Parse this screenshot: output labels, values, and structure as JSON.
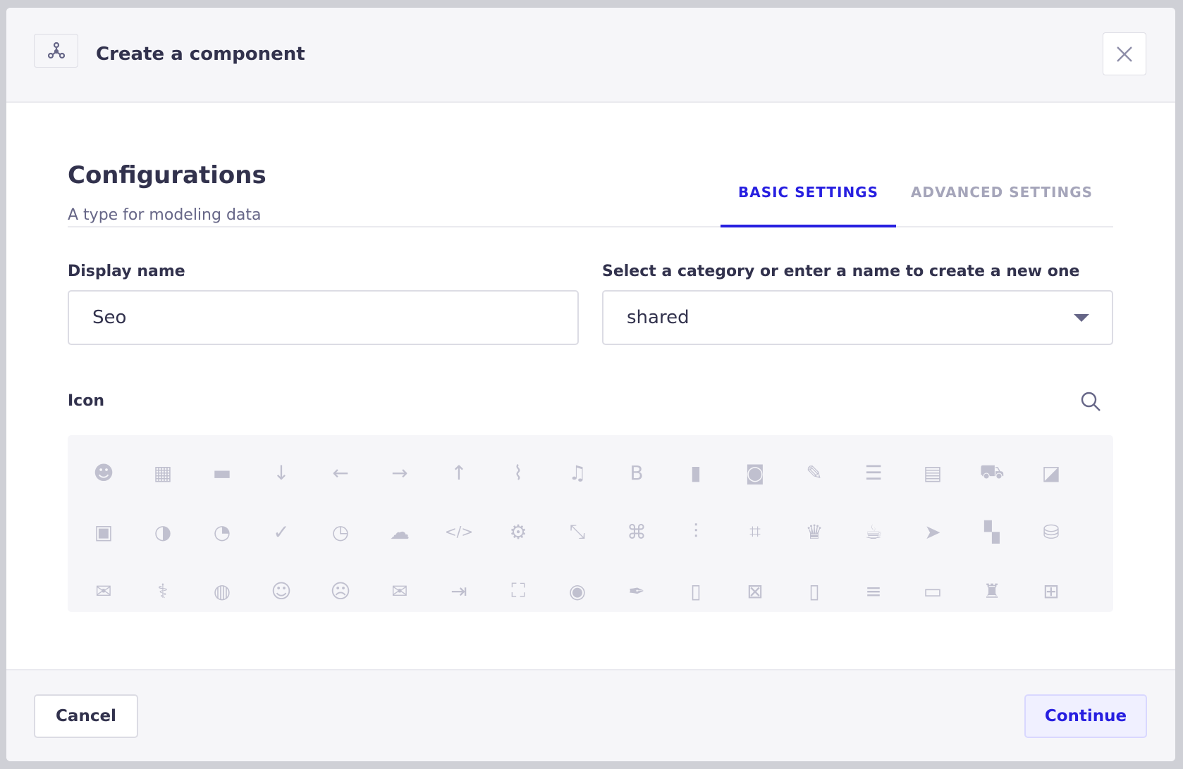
{
  "header": {
    "title": "Create a component",
    "close_label": "Close"
  },
  "config": {
    "heading": "Configurations",
    "subtitle": "A type for modeling data"
  },
  "tabs": [
    {
      "label": "BASIC SETTINGS",
      "active": true
    },
    {
      "label": "ADVANCED SETTINGS",
      "active": false
    }
  ],
  "form": {
    "display_name": {
      "label": "Display name",
      "value": "Seo"
    },
    "category": {
      "label": "Select a category or enter a name to create a new one",
      "value": "shared"
    },
    "icon": {
      "label": "Icon"
    }
  },
  "icons": [
    "alien",
    "apps",
    "archive",
    "arrow-down",
    "arrow-left",
    "arrow-right",
    "arrow-up",
    "paperclip",
    "bell",
    "bold",
    "book",
    "briefcase",
    "brush",
    "bulleted-list",
    "calendar",
    "car",
    "cast",
    "chart-bubble",
    "chart-circle",
    "chart-pie",
    "check",
    "clock",
    "cloud",
    "code",
    "cog",
    "collapse",
    "command",
    "sliders",
    "crop",
    "crown",
    "cup",
    "cursor",
    "dashboard",
    "database",
    "discuss",
    "doctor",
    "earth",
    "emotion-happy",
    "emotion-unhappy",
    "envelope",
    "exit",
    "expand",
    "eye",
    "feather",
    "file",
    "file-error",
    "file-pdf",
    "filter",
    "folder",
    "fort",
    "gift"
  ],
  "footer": {
    "cancel": "Cancel",
    "continue": "Continue"
  },
  "colors": {
    "accent": "#271fe0",
    "icon": "#c0c0cf",
    "text": "#32324d"
  }
}
